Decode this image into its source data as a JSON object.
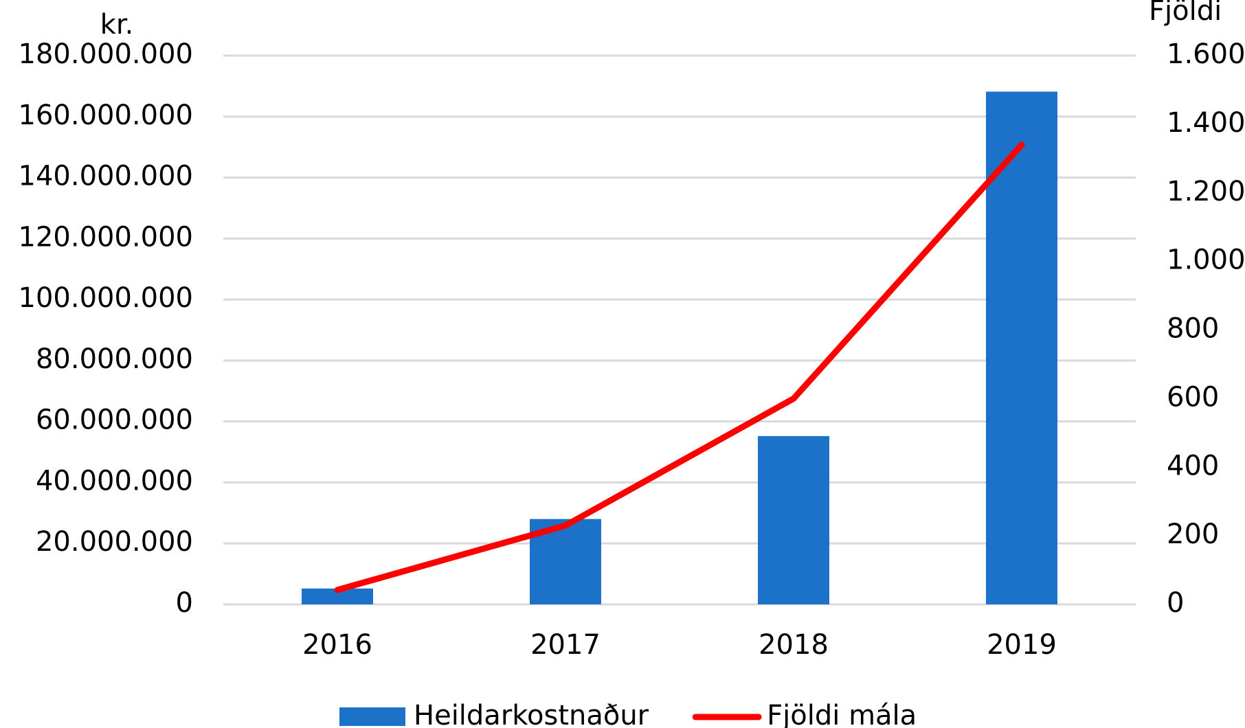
{
  "chart_data": {
    "type": "bar-line",
    "y_label": "kr.",
    "y2_label": "Fjöldi",
    "categories": [
      "2016",
      "2017",
      "2018",
      "2019"
    ],
    "series": [
      {
        "name": "Heildarkostnaður",
        "type": "bar",
        "color": "#1c72c8",
        "values": [
          5200000,
          28000000,
          55200000,
          168200000
        ]
      },
      {
        "name": "Fjöldi mála",
        "type": "line",
        "axis": "y2",
        "color": "#ff0000",
        "values": [
          42,
          230,
          600,
          1340
        ]
      }
    ],
    "ylim": [
      0,
      180000000
    ],
    "yticks": [
      0,
      {
        "value": 20000000,
        "label": "20.000.000"
      },
      {
        "value": 40000000,
        "label": "40.000.000"
      },
      {
        "value": 60000000,
        "label": "60.000.000"
      },
      {
        "value": 80000000,
        "label": "80.000.000"
      },
      {
        "value": 100000000,
        "label": "100.000.000"
      },
      {
        "value": 120000000,
        "label": "120.000.000"
      },
      {
        "value": 140000000,
        "label": "140.000.000"
      },
      {
        "value": 160000000,
        "label": "160.000.000"
      },
      {
        "value": 180000000,
        "label": "180.000.000"
      }
    ],
    "y2lim": [
      0,
      1600
    ],
    "y2ticks": [
      0,
      200,
      400,
      600,
      800,
      {
        "value": 1000,
        "label": "1.000"
      },
      {
        "value": 1200,
        "label": "1.200"
      },
      {
        "value": 1400,
        "label": "1.400"
      },
      {
        "value": 1600,
        "label": "1.600"
      }
    ],
    "grid": true,
    "legend": "bottom"
  }
}
